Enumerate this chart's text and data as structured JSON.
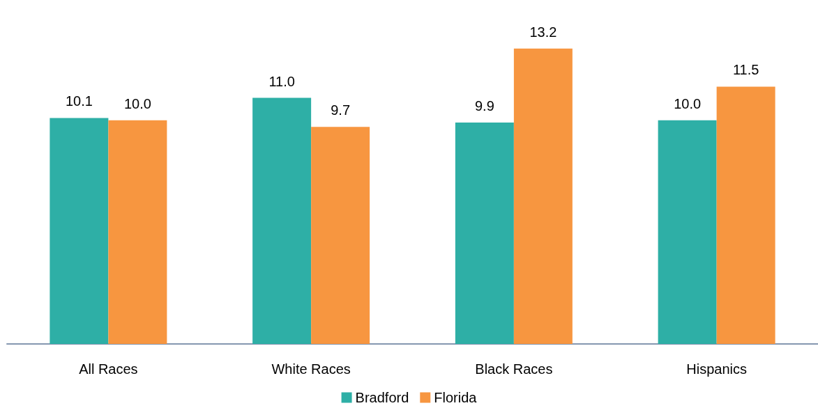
{
  "chart_data": {
    "type": "bar",
    "categories": [
      "All Races",
      "White Races",
      "Black Races",
      "Hispanics"
    ],
    "series": [
      {
        "name": "Bradford",
        "color": "#2eafa6",
        "values": [
          10.1,
          11.0,
          9.9,
          10.0
        ],
        "value_labels": [
          "10.1",
          "11.0",
          "9.9",
          "10.0"
        ]
      },
      {
        "name": "Florida",
        "color": "#f79640",
        "values": [
          10.0,
          9.7,
          13.2,
          11.5
        ],
        "value_labels": [
          "10.0",
          "9.7",
          "13.2",
          "11.5"
        ]
      }
    ],
    "legend": "bottom"
  }
}
